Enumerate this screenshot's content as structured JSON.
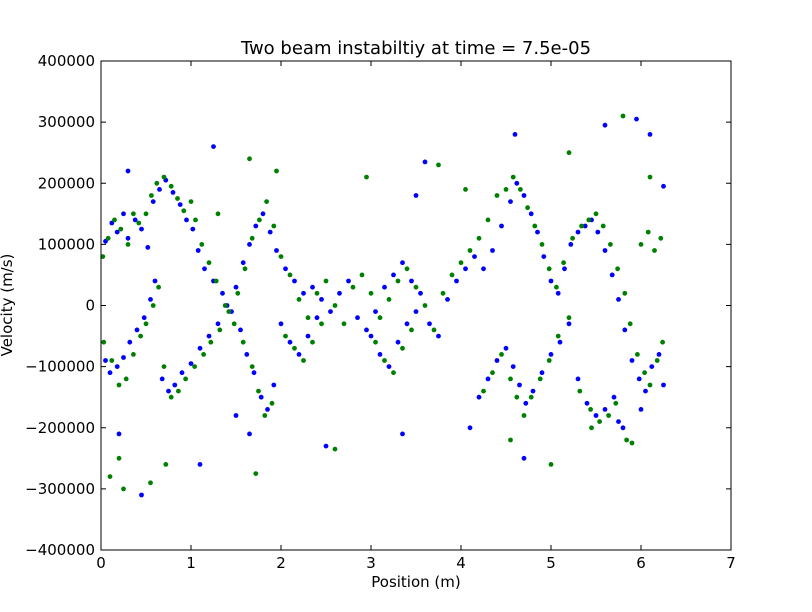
{
  "chart_data": {
    "type": "scatter",
    "title": "Two beam instabiltiy at time = 7.5e-05",
    "xlabel": "Position (m)",
    "ylabel": "Velocity (m/s)",
    "xlim": [
      0,
      7
    ],
    "ylim": [
      -400000,
      400000
    ],
    "xticks": [
      0,
      1,
      2,
      3,
      4,
      5,
      6,
      7
    ],
    "xtick_labels": [
      "0",
      "1",
      "2",
      "3",
      "4",
      "5",
      "6",
      "7"
    ],
    "yticks": [
      -400000,
      -300000,
      -200000,
      -100000,
      0,
      100000,
      200000,
      300000,
      400000
    ],
    "ytick_labels": [
      "−400000",
      "−300000",
      "−200000",
      "−100000",
      "0",
      "100000",
      "200000",
      "300000",
      "400000"
    ],
    "grid": false,
    "legend": "none",
    "series": [
      {
        "color": "#0000ff",
        "points": [
          [
            0.05,
            105000
          ],
          [
            0.12,
            135000
          ],
          [
            0.18,
            120000
          ],
          [
            0.25,
            150000
          ],
          [
            0.3,
            110000
          ],
          [
            0.38,
            140000
          ],
          [
            0.45,
            125000
          ],
          [
            0.52,
            95000
          ],
          [
            0.58,
            170000
          ],
          [
            0.65,
            190000
          ],
          [
            0.72,
            205000
          ],
          [
            0.8,
            185000
          ],
          [
            0.88,
            165000
          ],
          [
            0.95,
            140000
          ],
          [
            1.02,
            125000
          ],
          [
            1.08,
            90000
          ],
          [
            1.15,
            60000
          ],
          [
            1.25,
            40000
          ],
          [
            1.35,
            20000
          ],
          [
            1.45,
            -10000
          ],
          [
            1.55,
            -40000
          ],
          [
            1.62,
            -80000
          ],
          [
            1.7,
            -110000
          ],
          [
            1.78,
            -150000
          ],
          [
            1.85,
            -170000
          ],
          [
            1.92,
            -130000
          ],
          [
            0.05,
            -90000
          ],
          [
            0.1,
            -110000
          ],
          [
            0.18,
            -100000
          ],
          [
            0.25,
            -85000
          ],
          [
            0.32,
            -60000
          ],
          [
            0.4,
            -40000
          ],
          [
            0.48,
            -20000
          ],
          [
            0.55,
            10000
          ],
          [
            0.6,
            40000
          ],
          [
            0.68,
            -120000
          ],
          [
            0.75,
            -140000
          ],
          [
            0.82,
            -130000
          ],
          [
            0.9,
            -110000
          ],
          [
            1.0,
            -95000
          ],
          [
            1.1,
            -70000
          ],
          [
            1.2,
            -50000
          ],
          [
            1.3,
            -30000
          ],
          [
            1.4,
            0
          ],
          [
            1.5,
            30000
          ],
          [
            1.58,
            70000
          ],
          [
            1.65,
            100000
          ],
          [
            1.72,
            130000
          ],
          [
            1.8,
            150000
          ],
          [
            1.88,
            120000
          ],
          [
            1.95,
            90000
          ],
          [
            2.05,
            60000
          ],
          [
            2.15,
            40000
          ],
          [
            2.25,
            20000
          ],
          [
            2.35,
            30000
          ],
          [
            2.45,
            10000
          ],
          [
            2.55,
            -10000
          ],
          [
            2.65,
            20000
          ],
          [
            2.75,
            40000
          ],
          [
            2.85,
            -20000
          ],
          [
            2.95,
            -40000
          ],
          [
            3.05,
            -10000
          ],
          [
            3.15,
            30000
          ],
          [
            3.25,
            50000
          ],
          [
            3.35,
            70000
          ],
          [
            3.45,
            40000
          ],
          [
            3.55,
            20000
          ],
          [
            3.65,
            -30000
          ],
          [
            3.75,
            -50000
          ],
          [
            3.85,
            10000
          ],
          [
            3.95,
            40000
          ],
          [
            4.05,
            60000
          ],
          [
            4.15,
            80000
          ],
          [
            4.25,
            60000
          ],
          [
            4.35,
            90000
          ],
          [
            4.45,
            130000
          ],
          [
            4.55,
            170000
          ],
          [
            4.62,
            200000
          ],
          [
            4.7,
            180000
          ],
          [
            4.78,
            150000
          ],
          [
            4.85,
            120000
          ],
          [
            4.92,
            80000
          ],
          [
            5.0,
            40000
          ],
          [
            5.08,
            20000
          ],
          [
            5.15,
            60000
          ],
          [
            5.22,
            100000
          ],
          [
            5.3,
            120000
          ],
          [
            5.38,
            130000
          ],
          [
            5.45,
            140000
          ],
          [
            5.52,
            120000
          ],
          [
            5.6,
            90000
          ],
          [
            5.68,
            50000
          ],
          [
            5.75,
            10000
          ],
          [
            5.82,
            -40000
          ],
          [
            5.9,
            -90000
          ],
          [
            5.98,
            -120000
          ],
          [
            6.05,
            -140000
          ],
          [
            6.12,
            -100000
          ],
          [
            6.2,
            -80000
          ],
          [
            6.25,
            -130000
          ],
          [
            4.2,
            -150000
          ],
          [
            4.3,
            -120000
          ],
          [
            4.4,
            -90000
          ],
          [
            4.5,
            -70000
          ],
          [
            4.58,
            -100000
          ],
          [
            4.65,
            -130000
          ],
          [
            4.72,
            -160000
          ],
          [
            4.8,
            -140000
          ],
          [
            4.9,
            -110000
          ],
          [
            5.0,
            -80000
          ],
          [
            5.1,
            -60000
          ],
          [
            5.2,
            -30000
          ],
          [
            5.3,
            -120000
          ],
          [
            5.4,
            -160000
          ],
          [
            5.5,
            -180000
          ],
          [
            5.6,
            -170000
          ],
          [
            5.7,
            -150000
          ],
          [
            5.8,
            -200000
          ],
          [
            3.0,
            -50000
          ],
          [
            3.1,
            -80000
          ],
          [
            3.2,
            -100000
          ],
          [
            3.3,
            -60000
          ],
          [
            3.4,
            -30000
          ],
          [
            3.5,
            -10000
          ],
          [
            2.0,
            -30000
          ],
          [
            2.1,
            -60000
          ],
          [
            2.2,
            -80000
          ],
          [
            2.3,
            -50000
          ],
          [
            2.4,
            -20000
          ],
          [
            0.3,
            220000
          ],
          [
            0.45,
            -310000
          ],
          [
            1.1,
            -260000
          ],
          [
            1.25,
            260000
          ],
          [
            1.5,
            -180000
          ],
          [
            1.65,
            -210000
          ],
          [
            3.35,
            -210000
          ],
          [
            3.6,
            235000
          ],
          [
            4.6,
            280000
          ],
          [
            4.7,
            -250000
          ],
          [
            5.6,
            295000
          ],
          [
            5.95,
            305000
          ],
          [
            6.1,
            280000
          ],
          [
            6.25,
            195000
          ],
          [
            2.5,
            -230000
          ],
          [
            3.5,
            180000
          ],
          [
            4.1,
            -200000
          ],
          [
            5.75,
            -190000
          ],
          [
            0.2,
            -210000
          ],
          [
            6.0,
            -170000
          ]
        ]
      },
      {
        "color": "#008000",
        "points": [
          [
            0.02,
            80000
          ],
          [
            0.08,
            110000
          ],
          [
            0.15,
            140000
          ],
          [
            0.22,
            125000
          ],
          [
            0.3,
            100000
          ],
          [
            0.36,
            150000
          ],
          [
            0.42,
            135000
          ],
          [
            0.5,
            150000
          ],
          [
            0.56,
            180000
          ],
          [
            0.62,
            200000
          ],
          [
            0.7,
            210000
          ],
          [
            0.78,
            195000
          ],
          [
            0.85,
            175000
          ],
          [
            0.92,
            155000
          ],
          [
            1.0,
            170000
          ],
          [
            1.05,
            140000
          ],
          [
            1.12,
            100000
          ],
          [
            1.2,
            70000
          ],
          [
            1.28,
            40000
          ],
          [
            1.38,
            0
          ],
          [
            1.48,
            -30000
          ],
          [
            1.58,
            -60000
          ],
          [
            1.68,
            -100000
          ],
          [
            1.75,
            -140000
          ],
          [
            1.82,
            -180000
          ],
          [
            1.9,
            -160000
          ],
          [
            0.03,
            -60000
          ],
          [
            0.12,
            -90000
          ],
          [
            0.2,
            -130000
          ],
          [
            0.28,
            -120000
          ],
          [
            0.36,
            -80000
          ],
          [
            0.44,
            -50000
          ],
          [
            0.5,
            -30000
          ],
          [
            0.58,
            0
          ],
          [
            0.64,
            30000
          ],
          [
            0.7,
            -100000
          ],
          [
            0.78,
            -150000
          ],
          [
            0.86,
            -140000
          ],
          [
            0.94,
            -120000
          ],
          [
            1.04,
            -100000
          ],
          [
            1.14,
            -80000
          ],
          [
            1.22,
            -60000
          ],
          [
            1.32,
            -40000
          ],
          [
            1.42,
            -10000
          ],
          [
            1.52,
            20000
          ],
          [
            1.6,
            60000
          ],
          [
            1.68,
            110000
          ],
          [
            1.76,
            140000
          ],
          [
            1.84,
            170000
          ],
          [
            1.92,
            130000
          ],
          [
            2.0,
            80000
          ],
          [
            2.1,
            50000
          ],
          [
            2.2,
            10000
          ],
          [
            2.3,
            -20000
          ],
          [
            2.4,
            20000
          ],
          [
            2.5,
            40000
          ],
          [
            2.6,
            0
          ],
          [
            2.7,
            -30000
          ],
          [
            2.8,
            30000
          ],
          [
            2.9,
            50000
          ],
          [
            3.0,
            20000
          ],
          [
            3.1,
            -20000
          ],
          [
            3.2,
            10000
          ],
          [
            3.3,
            40000
          ],
          [
            3.4,
            60000
          ],
          [
            3.5,
            30000
          ],
          [
            3.6,
            0
          ],
          [
            3.7,
            -40000
          ],
          [
            3.8,
            20000
          ],
          [
            3.9,
            50000
          ],
          [
            4.0,
            70000
          ],
          [
            4.1,
            90000
          ],
          [
            4.2,
            110000
          ],
          [
            4.3,
            140000
          ],
          [
            4.4,
            180000
          ],
          [
            4.5,
            190000
          ],
          [
            4.58,
            210000
          ],
          [
            4.66,
            190000
          ],
          [
            4.74,
            160000
          ],
          [
            4.82,
            130000
          ],
          [
            4.9,
            100000
          ],
          [
            4.98,
            60000
          ],
          [
            5.06,
            30000
          ],
          [
            5.14,
            70000
          ],
          [
            5.24,
            110000
          ],
          [
            5.34,
            130000
          ],
          [
            5.42,
            140000
          ],
          [
            5.5,
            150000
          ],
          [
            5.58,
            130000
          ],
          [
            5.66,
            100000
          ],
          [
            5.74,
            60000
          ],
          [
            5.82,
            20000
          ],
          [
            5.88,
            -30000
          ],
          [
            5.96,
            -80000
          ],
          [
            6.04,
            -110000
          ],
          [
            6.1,
            -130000
          ],
          [
            6.18,
            -90000
          ],
          [
            6.24,
            -60000
          ],
          [
            6.0,
            100000
          ],
          [
            6.08,
            120000
          ],
          [
            6.15,
            90000
          ],
          [
            6.22,
            110000
          ],
          [
            4.25,
            -140000
          ],
          [
            4.35,
            -110000
          ],
          [
            4.45,
            -80000
          ],
          [
            4.55,
            -120000
          ],
          [
            4.62,
            -150000
          ],
          [
            4.7,
            -180000
          ],
          [
            4.78,
            -150000
          ],
          [
            4.88,
            -120000
          ],
          [
            4.98,
            -90000
          ],
          [
            5.08,
            -50000
          ],
          [
            5.2,
            -20000
          ],
          [
            5.32,
            -140000
          ],
          [
            5.44,
            -170000
          ],
          [
            5.54,
            -190000
          ],
          [
            5.64,
            -180000
          ],
          [
            5.72,
            -160000
          ],
          [
            5.84,
            -220000
          ],
          [
            2.05,
            -50000
          ],
          [
            2.15,
            -70000
          ],
          [
            2.25,
            -90000
          ],
          [
            2.35,
            -60000
          ],
          [
            2.45,
            -30000
          ],
          [
            3.05,
            -60000
          ],
          [
            3.15,
            -90000
          ],
          [
            3.25,
            -110000
          ],
          [
            3.35,
            -70000
          ],
          [
            3.45,
            -40000
          ],
          [
            0.1,
            -280000
          ],
          [
            0.25,
            -300000
          ],
          [
            0.55,
            -290000
          ],
          [
            0.72,
            -260000
          ],
          [
            1.65,
            240000
          ],
          [
            1.72,
            -275000
          ],
          [
            1.95,
            220000
          ],
          [
            2.6,
            -235000
          ],
          [
            2.95,
            210000
          ],
          [
            3.75,
            230000
          ],
          [
            4.55,
            -220000
          ],
          [
            5.0,
            -260000
          ],
          [
            5.2,
            250000
          ],
          [
            5.8,
            310000
          ],
          [
            5.9,
            -225000
          ],
          [
            6.1,
            210000
          ],
          [
            0.2,
            -250000
          ],
          [
            4.05,
            190000
          ],
          [
            5.45,
            -200000
          ],
          [
            1.3,
            150000
          ]
        ]
      }
    ]
  }
}
